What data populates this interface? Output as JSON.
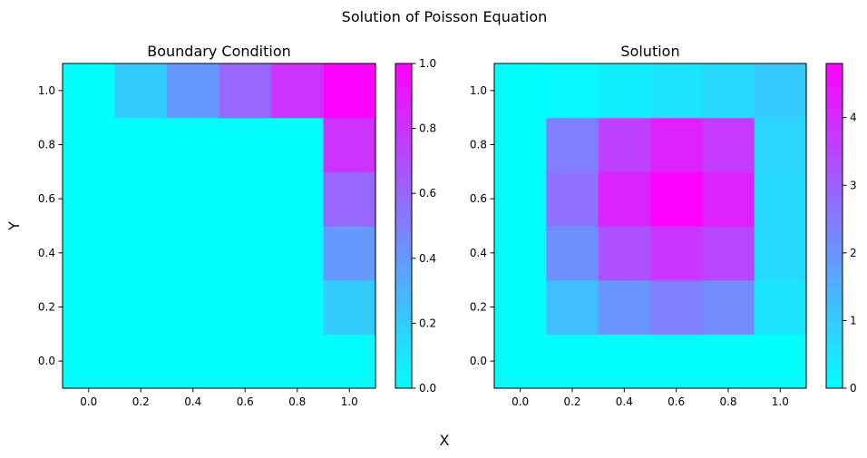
{
  "figure": {
    "suptitle": "Solution of Poisson Equation",
    "xlabel": "X",
    "ylabel": "Y",
    "colormap": "cool",
    "colormap_endpoints": [
      "#00ffff",
      "#ff00ff"
    ]
  },
  "chart_data": [
    {
      "type": "heatmap",
      "title": "Boundary Condition",
      "x": [
        0.0,
        0.2,
        0.4,
        0.6,
        0.8,
        1.0
      ],
      "y": [
        0.0,
        0.2,
        0.4,
        0.6,
        0.8,
        1.0
      ],
      "xlim": [
        -0.1,
        1.1
      ],
      "ylim": [
        -0.1,
        1.1
      ],
      "xticks": [
        "0.0",
        "0.2",
        "0.4",
        "0.6",
        "0.8",
        "1.0"
      ],
      "yticks": [
        "0.0",
        "0.2",
        "0.4",
        "0.6",
        "0.8",
        "1.0"
      ],
      "z": [
        [
          0.0,
          0.0,
          0.0,
          0.0,
          0.0,
          0.0
        ],
        [
          0.0,
          0.0,
          0.0,
          0.0,
          0.0,
          0.2
        ],
        [
          0.0,
          0.0,
          0.0,
          0.0,
          0.0,
          0.4
        ],
        [
          0.0,
          0.0,
          0.0,
          0.0,
          0.0,
          0.6
        ],
        [
          0.0,
          0.0,
          0.0,
          0.0,
          0.0,
          0.8
        ],
        [
          0.0,
          0.2,
          0.4,
          0.6,
          0.8,
          1.0
        ]
      ],
      "vmin": 0.0,
      "vmax": 1.0,
      "colorbar_ticks": [
        0.0,
        0.2,
        0.4,
        0.6,
        0.8,
        1.0
      ],
      "colorbar_tick_labels": [
        "0.0",
        "0.2",
        "0.4",
        "0.6",
        "0.8",
        "1.0"
      ]
    },
    {
      "type": "heatmap",
      "title": "Solution",
      "x": [
        0.0,
        0.2,
        0.4,
        0.6,
        0.8,
        1.0
      ],
      "y": [
        0.0,
        0.2,
        0.4,
        0.6,
        0.8,
        1.0
      ],
      "xlim": [
        -0.1,
        1.1
      ],
      "ylim": [
        -0.1,
        1.1
      ],
      "xticks": [
        "0.0",
        "0.2",
        "0.4",
        "0.6",
        "0.8",
        "1.0"
      ],
      "yticks": [
        "0.0",
        "0.2",
        "0.4",
        "0.6",
        "0.8",
        "1.0"
      ],
      "z": [
        [
          0.0,
          0.0,
          0.0,
          0.0,
          0.0,
          0.0
        ],
        [
          0.0,
          1.2,
          2.0,
          2.4,
          2.2,
          0.5
        ],
        [
          0.0,
          2.1,
          3.3,
          3.8,
          3.5,
          0.7
        ],
        [
          0.0,
          2.7,
          4.1,
          4.8,
          4.2,
          0.7
        ],
        [
          0.0,
          2.4,
          3.6,
          4.2,
          3.7,
          0.8
        ],
        [
          0.0,
          0.1,
          0.3,
          0.5,
          0.7,
          1.0
        ]
      ],
      "vmin": 0.0,
      "vmax": 4.8,
      "colorbar_ticks": [
        0,
        1,
        2,
        3,
        4
      ],
      "colorbar_tick_labels": [
        "0",
        "1",
        "2",
        "3",
        "4"
      ]
    }
  ]
}
